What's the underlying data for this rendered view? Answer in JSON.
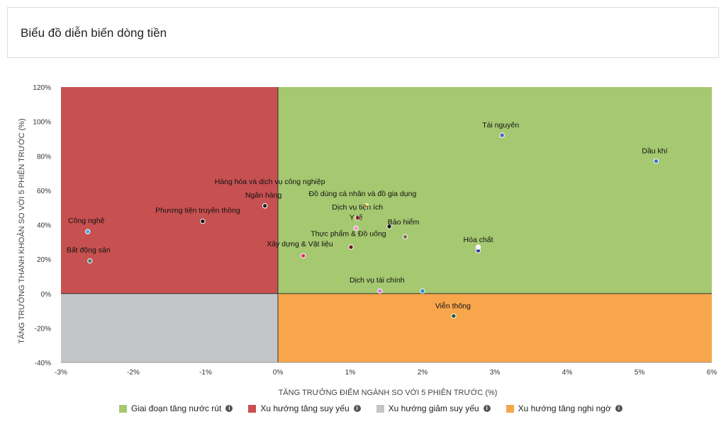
{
  "header": {
    "title": "Biểu đồ diễn biến dòng tiền"
  },
  "colors": {
    "q_green": "#a5c870",
    "q_red": "#c75050",
    "q_gray": "#c4c5c8",
    "q_orange": "#f7a64c",
    "axis_line": "#333333"
  },
  "chart_data": {
    "type": "scatter",
    "xlabel": "TĂNG TRƯỞNG ĐIỂM NGÀNH SO VỚI 5 PHIÊN TRƯỚC (%)",
    "ylabel": "TĂNG TRƯỞNG THANH KHOẢN SO VỚI 5 PHIÊN TRƯỚC (%)",
    "xlim": [
      -3,
      6
    ],
    "ylim": [
      -40,
      120
    ],
    "xticks": [
      {
        "value": -3,
        "label": "-3%"
      },
      {
        "value": -2,
        "label": "-2%"
      },
      {
        "value": -1,
        "label": "-1%"
      },
      {
        "value": 0,
        "label": "0%"
      },
      {
        "value": 1,
        "label": "1%"
      },
      {
        "value": 2,
        "label": "2%"
      },
      {
        "value": 3,
        "label": "3%"
      },
      {
        "value": 4,
        "label": "4%"
      },
      {
        "value": 5,
        "label": "5%"
      },
      {
        "value": 6,
        "label": "6%"
      }
    ],
    "yticks": [
      {
        "value": 120,
        "label": "120%"
      },
      {
        "value": 100,
        "label": "100%"
      },
      {
        "value": 80,
        "label": "80%"
      },
      {
        "value": 60,
        "label": "60%"
      },
      {
        "value": 40,
        "label": "40%"
      },
      {
        "value": 20,
        "label": "20%"
      },
      {
        "value": 0,
        "label": "0%"
      },
      {
        "value": -20,
        "label": "-20%"
      },
      {
        "value": -40,
        "label": "-40%"
      }
    ],
    "points": [
      {
        "name": "Tài nguyên",
        "x": 3.1,
        "y": 92,
        "color": "#5b5bc8",
        "label_dx": -2,
        "label_dy": -11
      },
      {
        "name": "Dầu khí",
        "x": 5.23,
        "y": 77,
        "color": "#3c6fd0",
        "label_dx": -2,
        "label_dy": -11
      },
      {
        "name": "Hàng hóa và dịch vụ công nghiệp",
        "x": -0.18,
        "y": 51,
        "color": "#222222",
        "label_dx": 7,
        "label_dy": -31
      },
      {
        "name": "Ngân hàng",
        "x": -0.18,
        "y": 51,
        "color": "#222222",
        "label_dx": -2,
        "label_dy": -12
      },
      {
        "name": "Đồ dùng cá nhân và đồ gia dụng",
        "x": 1.22,
        "y": 51,
        "color": "#f0e040",
        "label_dx": -5,
        "label_dy": -14
      },
      {
        "name": "Dịch vụ tiện ích",
        "x": 1.1,
        "y": 44,
        "color": "#d23030",
        "label_dx": 0,
        "label_dy": -12
      },
      {
        "name": "Y tế",
        "x": 1.08,
        "y": 38,
        "color": "#f090c0",
        "label_dx": 0,
        "label_dy": -12
      },
      {
        "name": "Bảo hiểm",
        "x": 1.54,
        "y": 39,
        "color": "#111111",
        "label_dx": 20,
        "label_dy": -3
      },
      {
        "name": "Thực phẩm & Đồ uống",
        "x": 1.76,
        "y": 33,
        "color": "#7a6a50",
        "label_dx": -80,
        "label_dy": -1
      },
      {
        "name": "Phương tiện truyền thông",
        "x": -1.04,
        "y": 42,
        "color": "#111111",
        "label_dx": -7,
        "label_dy": -12
      },
      {
        "name": "Công nghệ",
        "x": -2.63,
        "y": 36,
        "color": "#3fa8e0",
        "label_dx": -2,
        "label_dy": -12
      },
      {
        "name": "Bất động sản",
        "x": -2.6,
        "y": 19,
        "color": "#4a8070",
        "label_dx": -2,
        "label_dy": -12
      },
      {
        "name": "Xây dựng & Vật liệu",
        "x": 1.01,
        "y": 27,
        "color": "#6a1a1a",
        "label_dx": -72,
        "label_dy": -1
      },
      {
        "name": "",
        "x": 0.35,
        "y": 22,
        "color": "#e03060",
        "label_dx": 0,
        "label_dy": 0
      },
      {
        "name": "Hóa chất",
        "x": 2.77,
        "y": 25,
        "color": "#333399",
        "label_dx": 0,
        "label_dy": -12
      },
      {
        "name": "",
        "x": 2.77,
        "y": 27,
        "color": "#f5f5f5",
        "label_dx": 0,
        "label_dy": 0
      },
      {
        "name": "Dịch vụ tài chính",
        "x": 1.41,
        "y": 1.5,
        "color": "#e070e0",
        "label_dx": -4,
        "label_dy": -12
      },
      {
        "name": "",
        "x": 2.0,
        "y": 1.5,
        "color": "#2a8ad0",
        "label_dx": 0,
        "label_dy": 0
      },
      {
        "name": "Viễn thông",
        "x": 2.43,
        "y": -13,
        "color": "#2a5a2a",
        "label_dx": -1,
        "label_dy": -11
      }
    ]
  },
  "legend": [
    {
      "label": "Giai đoạn tăng nước rút",
      "color": "#a5c870",
      "icon": "info-icon"
    },
    {
      "label": "Xu hướng tăng suy yếu",
      "color": "#c75050",
      "icon": "info-icon"
    },
    {
      "label": "Xu hướng giảm suy yếu",
      "color": "#c4c5c8",
      "icon": "info-icon"
    },
    {
      "label": "Xu hướng tăng nghi ngờ",
      "color": "#f7a64c",
      "icon": "info-icon"
    }
  ]
}
